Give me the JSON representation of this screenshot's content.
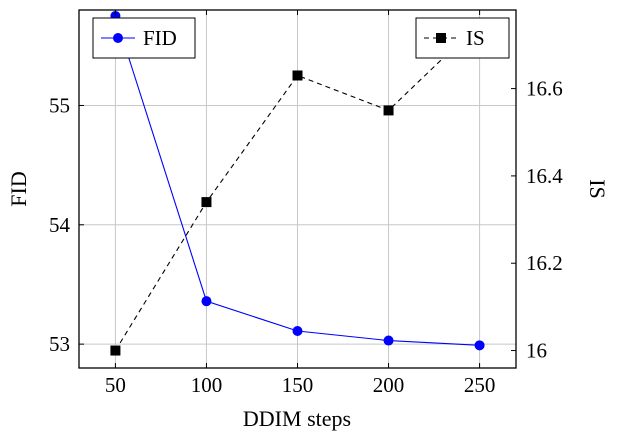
{
  "chart_data": {
    "type": "line",
    "xlabel": "DDIM steps",
    "ylabel_left": "FID",
    "ylabel_right": "IS",
    "x_ticks": [
      50,
      100,
      150,
      200,
      250
    ],
    "y_left_ticks": [
      53,
      54,
      55
    ],
    "y_right_ticks": [
      16,
      16.2,
      16.4,
      16.6
    ],
    "xlim": [
      30,
      270
    ],
    "ylim_left": [
      52.8,
      55.8
    ],
    "ylim_right": [
      15.96,
      16.78
    ],
    "grid": true,
    "series": [
      {
        "name": "FID",
        "axis": "left",
        "color": "#0000ff",
        "line_style": "solid",
        "marker": "circle",
        "x": [
          50,
          100,
          150,
          200,
          250
        ],
        "y": [
          55.75,
          53.36,
          53.11,
          53.03,
          52.99
        ]
      },
      {
        "name": "IS",
        "axis": "right",
        "color": "#000000",
        "line_style": "dashed",
        "marker": "square",
        "x": [
          50,
          100,
          150,
          200,
          250
        ],
        "y": [
          16.0,
          16.34,
          16.63,
          16.55,
          16.75
        ]
      }
    ],
    "legends": [
      {
        "series": "FID",
        "placement": "top-left"
      },
      {
        "series": "IS",
        "placement": "top-right"
      }
    ]
  }
}
